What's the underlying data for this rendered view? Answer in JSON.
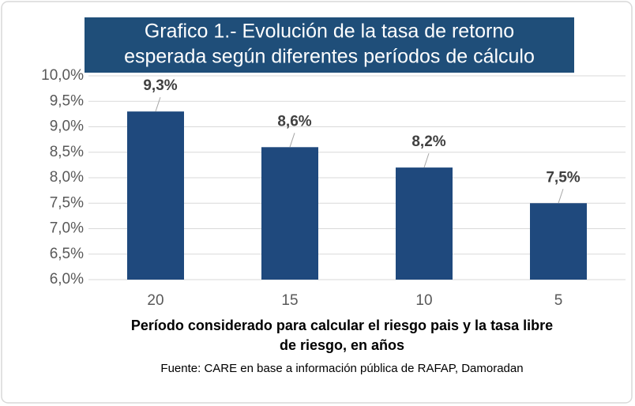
{
  "chart_data": {
    "type": "bar",
    "title": [
      "Grafico 1.- Evolución de la tasa de retorno",
      "esperada según diferentes períodos de cálculo"
    ],
    "categories": [
      "20",
      "15",
      "10",
      "5"
    ],
    "values": [
      9.3,
      8.6,
      8.2,
      7.5
    ],
    "value_labels": [
      "9,3%",
      "8,6%",
      "8,2%",
      "7,5%"
    ],
    "color": "#1f497d",
    "ylim": [
      6,
      10
    ],
    "yticks": [
      {
        "value": 6,
        "label": "6,0%"
      },
      {
        "value": 6.5,
        "label": "6,5%"
      },
      {
        "value": 7,
        "label": "7,0%"
      },
      {
        "value": 7.5,
        "label": "7,5%"
      },
      {
        "value": 8,
        "label": "8,0%"
      },
      {
        "value": 8.5,
        "label": "8,5%"
      },
      {
        "value": 9,
        "label": "9,0%"
      },
      {
        "value": 9.5,
        "label": "9,5%"
      },
      {
        "value": 10,
        "label": "10,0%"
      }
    ],
    "grid": true,
    "x_label": [
      "Período considerado para calcular el riesgo pais y la tasa libre",
      "de riesgo, en años"
    ],
    "source": "Fuente: CARE en base a información pública de RAFAP, Damoradan"
  }
}
